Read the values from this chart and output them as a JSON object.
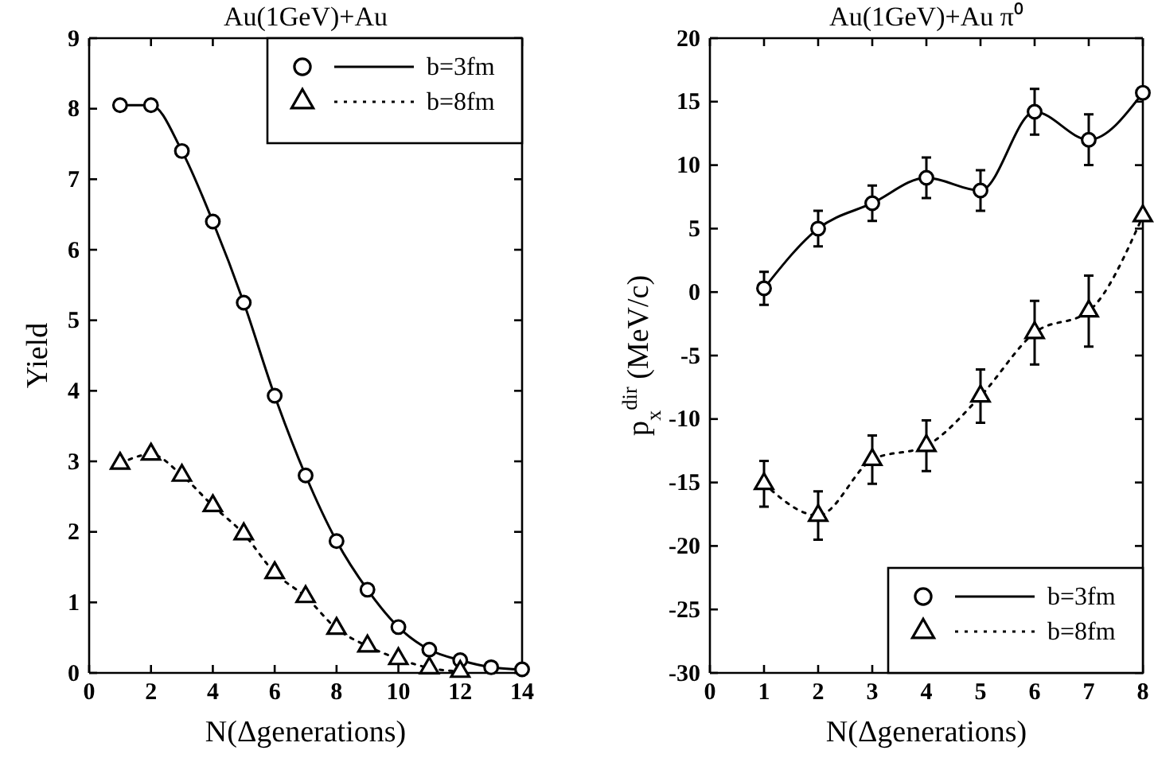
{
  "chart_data": [
    {
      "type": "line",
      "title": "Au(1GeV)+Au",
      "xlabel": "N(Δgenerations)",
      "ylabel": "Yield",
      "x": [
        1,
        2,
        3,
        4,
        5,
        6,
        7,
        8,
        9,
        10,
        11,
        12,
        13,
        14
      ],
      "xlim": [
        0,
        14
      ],
      "xticks": [
        0,
        2,
        4,
        6,
        8,
        10,
        12,
        14
      ],
      "ylim": [
        0,
        9
      ],
      "yticks": [
        0,
        1,
        2,
        3,
        4,
        5,
        6,
        7,
        8,
        9
      ],
      "grid": false,
      "legend": "top right",
      "series": [
        {
          "name": "b=3fm",
          "color": "#000000",
          "marker": "circle",
          "line_style": "solid",
          "values": [
            8.05,
            8.05,
            7.4,
            6.4,
            5.25,
            3.93,
            2.8,
            1.87,
            1.18,
            0.65,
            0.33,
            0.18,
            0.08,
            0.05
          ]
        },
        {
          "name": "b=8fm",
          "color": "#000000",
          "marker": "triangle",
          "line_style": "dotted",
          "values": [
            2.97,
            3.1,
            2.8,
            2.37,
            1.97,
            1.42,
            1.08,
            0.63,
            0.38,
            0.2,
            0.07,
            0.02,
            null,
            null
          ]
        }
      ]
    },
    {
      "type": "line",
      "title": "Au(1GeV)+Au π⁰",
      "xlabel": "N(Δgenerations)",
      "ylabel": "p$_{x}$$^{dir}$ (MeV/c)",
      "x": [
        1,
        2,
        3,
        4,
        5,
        6,
        7,
        8
      ],
      "xlim": [
        0,
        8
      ],
      "xticks": [
        0,
        1,
        2,
        3,
        4,
        5,
        6,
        7,
        8
      ],
      "ylim": [
        -30,
        20
      ],
      "yticks": [
        -30,
        -25,
        -20,
        -15,
        -10,
        -5,
        0,
        5,
        10,
        15,
        20
      ],
      "grid": false,
      "legend": "bottom right",
      "series": [
        {
          "name": "b=3fm",
          "color": "#000000",
          "marker": "circle",
          "line_style": "solid",
          "values": [
            0.3,
            5,
            7,
            9,
            8,
            14.2,
            12,
            15.7
          ],
          "errors": [
            1.3,
            1.4,
            1.4,
            1.6,
            1.6,
            1.8,
            2,
            null
          ]
        },
        {
          "name": "b=8fm",
          "color": "#000000",
          "marker": "triangle",
          "line_style": "dotted",
          "values": [
            -15.1,
            -17.6,
            -13.2,
            -12.1,
            -8.2,
            -3.2,
            -1.5,
            6
          ],
          "errors": [
            1.8,
            1.9,
            1.9,
            2,
            2.1,
            2.5,
            2.8,
            null
          ]
        }
      ]
    }
  ]
}
